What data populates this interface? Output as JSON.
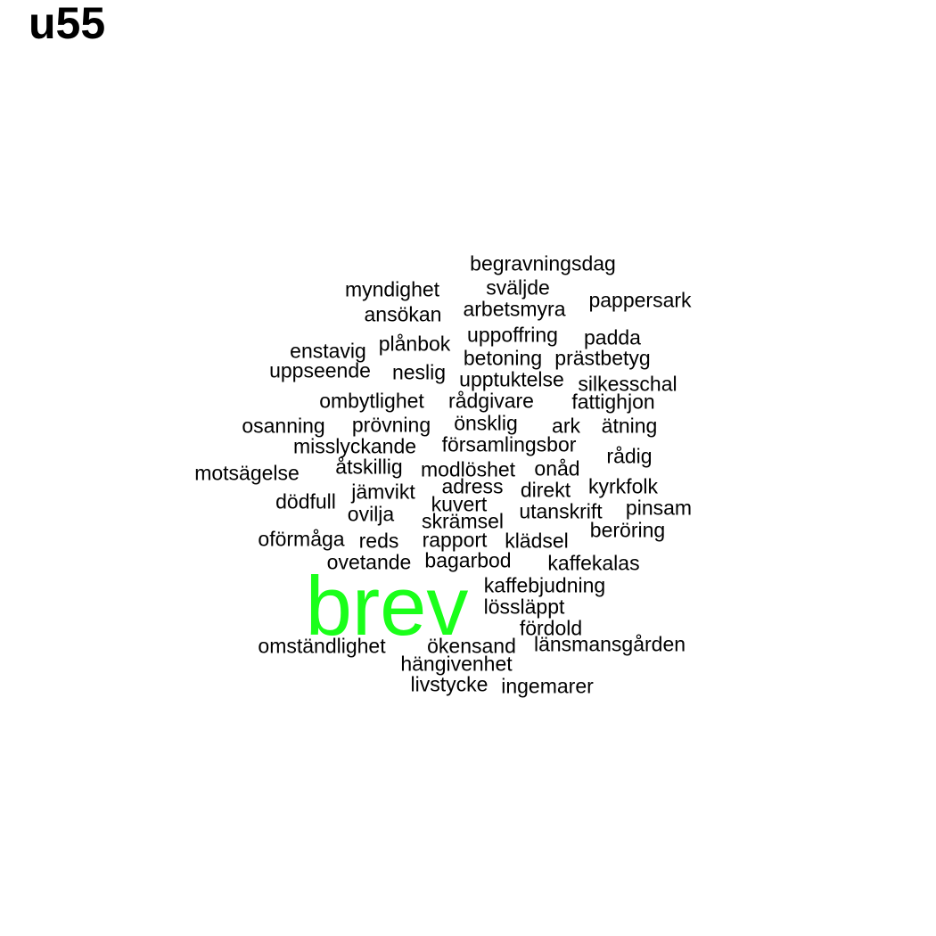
{
  "chart_data": {
    "type": "wordcloud",
    "title": "u55",
    "colors": {
      "default": "#000000",
      "highlight": "#1aff1a"
    },
    "words": [
      {
        "text": "brev",
        "weight": 10,
        "color": "highlight"
      },
      {
        "text": "begravningsdag",
        "weight": 1
      },
      {
        "text": "myndighet",
        "weight": 1
      },
      {
        "text": "sväljde",
        "weight": 1
      },
      {
        "text": "pappersark",
        "weight": 1
      },
      {
        "text": "arbetsmyra",
        "weight": 1
      },
      {
        "text": "ansökan",
        "weight": 1
      },
      {
        "text": "uppoffring",
        "weight": 1
      },
      {
        "text": "padda",
        "weight": 1
      },
      {
        "text": "enstavig",
        "weight": 1
      },
      {
        "text": "plånbok",
        "weight": 1
      },
      {
        "text": "betoning",
        "weight": 1
      },
      {
        "text": "prästbetyg",
        "weight": 1
      },
      {
        "text": "uppseende",
        "weight": 1
      },
      {
        "text": "neslig",
        "weight": 1
      },
      {
        "text": "upptuktelse",
        "weight": 1
      },
      {
        "text": "silkesschal",
        "weight": 1
      },
      {
        "text": "ombytlighet",
        "weight": 1
      },
      {
        "text": "rådgivare",
        "weight": 1
      },
      {
        "text": "fattighjon",
        "weight": 1
      },
      {
        "text": "osanning",
        "weight": 1
      },
      {
        "text": "prövning",
        "weight": 1
      },
      {
        "text": "önsklig",
        "weight": 1
      },
      {
        "text": "ark",
        "weight": 1
      },
      {
        "text": "ätning",
        "weight": 1
      },
      {
        "text": "misslyckande",
        "weight": 1
      },
      {
        "text": "församlingsbor",
        "weight": 1
      },
      {
        "text": "rådig",
        "weight": 1
      },
      {
        "text": "motsägelse",
        "weight": 1
      },
      {
        "text": "åtskillig",
        "weight": 1
      },
      {
        "text": "modlöshet",
        "weight": 1
      },
      {
        "text": "onåd",
        "weight": 1
      },
      {
        "text": "adress",
        "weight": 1
      },
      {
        "text": "kyrkfolk",
        "weight": 1
      },
      {
        "text": "dödfull",
        "weight": 1
      },
      {
        "text": "jämvikt",
        "weight": 1
      },
      {
        "text": "direkt",
        "weight": 1
      },
      {
        "text": "kuvert",
        "weight": 1
      },
      {
        "text": "pinsam",
        "weight": 1
      },
      {
        "text": "ovilja",
        "weight": 1
      },
      {
        "text": "utanskrift",
        "weight": 1
      },
      {
        "text": "skrämsel",
        "weight": 1
      },
      {
        "text": "beröring",
        "weight": 1
      },
      {
        "text": "oförmåga",
        "weight": 1
      },
      {
        "text": "reds",
        "weight": 1
      },
      {
        "text": "rapport",
        "weight": 1
      },
      {
        "text": "klädsel",
        "weight": 1
      },
      {
        "text": "ovetande",
        "weight": 1
      },
      {
        "text": "bagarbod",
        "weight": 1
      },
      {
        "text": "kaffekalas",
        "weight": 1
      },
      {
        "text": "kaffebjudning",
        "weight": 1
      },
      {
        "text": "lössläppt",
        "weight": 1
      },
      {
        "text": "fördold",
        "weight": 1
      },
      {
        "text": "omständlighet",
        "weight": 1
      },
      {
        "text": "ökensand",
        "weight": 1
      },
      {
        "text": "länsmansgården",
        "weight": 1
      },
      {
        "text": "hängivenhet",
        "weight": 1
      },
      {
        "text": "livstycke",
        "weight": 1
      },
      {
        "text": "ingemarer",
        "weight": 1
      }
    ]
  }
}
